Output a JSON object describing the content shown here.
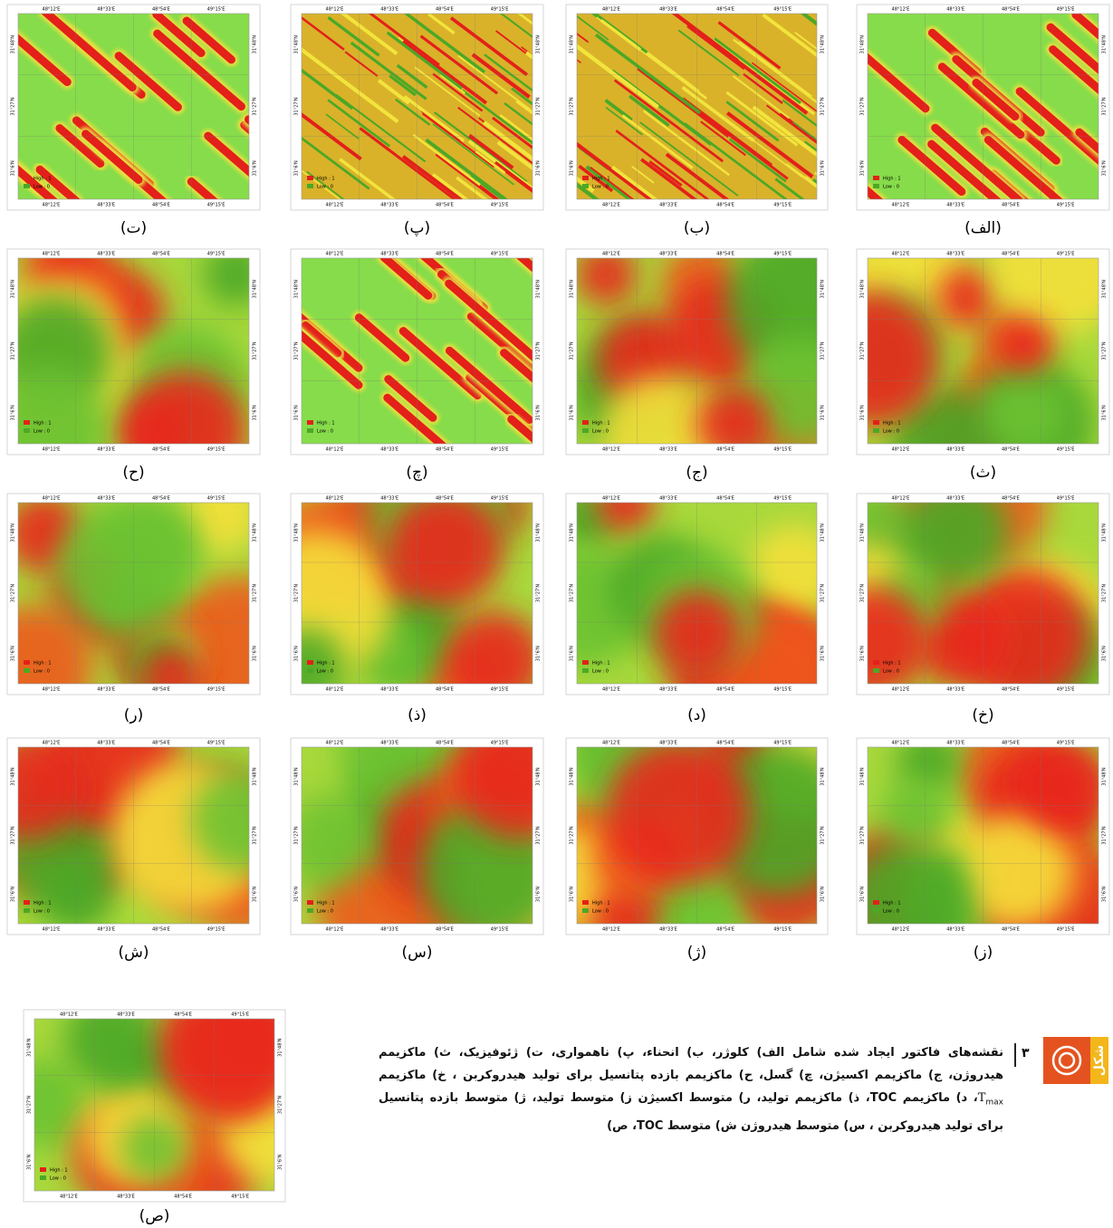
{
  "panels": [
    {
      "label": "(الف)"
    },
    {
      "label": "(ب)"
    },
    {
      "label": "(پ)"
    },
    {
      "label": "(ت)"
    },
    {
      "label": "(ث)"
    },
    {
      "label": "(ج)"
    },
    {
      "label": "(چ)"
    },
    {
      "label": "(ح)"
    },
    {
      "label": "(خ)"
    },
    {
      "label": "(د)"
    },
    {
      "label": "(ذ)"
    },
    {
      "label": "(ر)"
    },
    {
      "label": "(ز)"
    },
    {
      "label": "(ژ)"
    },
    {
      "label": "(س)"
    },
    {
      "label": "(ش)"
    },
    {
      "label": "(ص)"
    }
  ],
  "map_axes": {
    "lon": [
      "48°12'E",
      "48°33'E",
      "48°54'E",
      "49°15'E"
    ],
    "lat": [
      "31°48'N",
      "31°27'N",
      "31°6'N"
    ]
  },
  "legend": {
    "high": "High : 1",
    "low": "Low : 0"
  },
  "caption": {
    "figure_word": "شکل",
    "figure_number": "۳",
    "text_1": "نقشه‌های فاکتور ایجاد شده شامل الف) کلوژر، ب) انحناء، پ) ناهمواری، ت) ژئوفیزیک، ث) ماکزیمم هیدروژن، ج) ماکزیمم اکسیژن، چ) گسل، ح) ماکزیمم بازده پتانسیل برای تولید هیدروکربن ، خ) ماکزیمم",
    "t": "T",
    "sub": "max",
    "text_2": "، د) ماکزیمم TOC، ذ) ماکزیمم تولید، ر) متوسط اکسیژن ز) متوسط تولید، ژ) متوسط بازده پتانسیل برای تولید هیدروکربن ، س) متوسط هیدروژن ش) متوسط TOC، ص)"
  }
}
